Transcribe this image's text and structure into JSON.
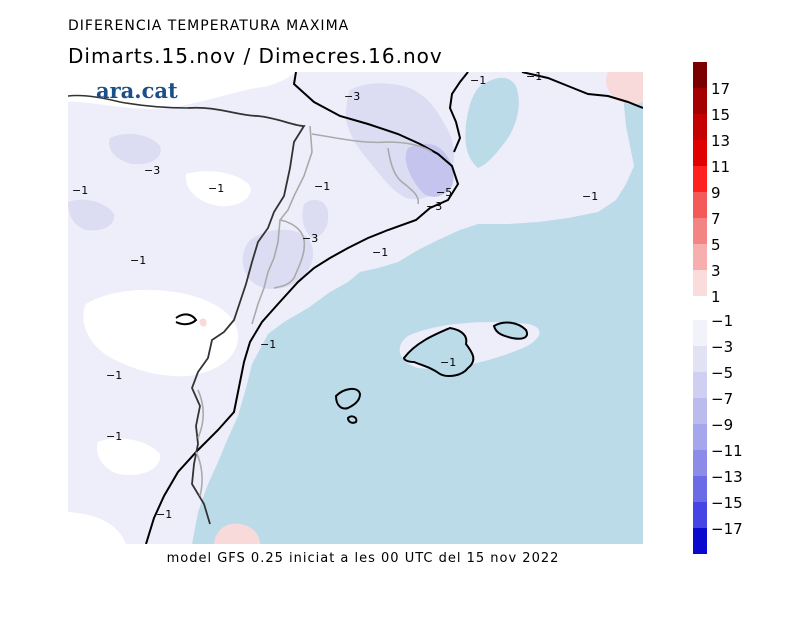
{
  "header": {
    "title": "DIFERENCIA TEMPERATURA MAXIMA",
    "period": "Dimarts.15.nov / Dimecres.16.nov"
  },
  "logo": {
    "text": "ara.cat"
  },
  "footer": {
    "text": "model GFS 0.25 iniciat a les 00 UTC del 15 nov 2022"
  },
  "colors": {
    "sea": "#bcdbe9",
    "land_white": "#ffffff",
    "band_minus1": "#eeeefb",
    "band_minus3": "#dcdcf3",
    "band_minus5": "#c4c4ee",
    "band_plus1": "#f9dada"
  },
  "map": {
    "contour_labels": [
      {
        "text": "−1"
      },
      {
        "text": "−3"
      },
      {
        "text": "−1"
      },
      {
        "text": "−1"
      },
      {
        "text": "−1"
      },
      {
        "text": "−3"
      },
      {
        "text": "−1"
      },
      {
        "text": "−5"
      },
      {
        "text": "−3"
      },
      {
        "text": "−3"
      },
      {
        "text": "−1"
      },
      {
        "text": "−1"
      },
      {
        "text": "−1"
      },
      {
        "text": "−1"
      },
      {
        "text": "−1"
      },
      {
        "text": "−1"
      },
      {
        "text": "−1"
      },
      {
        "text": "−1"
      },
      {
        "text": "−1"
      }
    ]
  },
  "legend": {
    "positive": [
      {
        "label": "17",
        "color": "#7a0000"
      },
      {
        "label": "15",
        "color": "#a40000"
      },
      {
        "label": "13",
        "color": "#c40000"
      },
      {
        "label": "11",
        "color": "#e00000"
      },
      {
        "label": "9",
        "color": "#ff2020"
      },
      {
        "label": "7",
        "color": "#f55a5a"
      },
      {
        "label": "5",
        "color": "#f48383"
      },
      {
        "label": "3",
        "color": "#f6aeae"
      },
      {
        "label": "1",
        "color": "#fadcdc"
      }
    ],
    "negative": [
      {
        "label": "−1",
        "color": "#f2f2fb"
      },
      {
        "label": "−3",
        "color": "#e2e2f5"
      },
      {
        "label": "−5",
        "color": "#cfcff1"
      },
      {
        "label": "−7",
        "color": "#bbbbee"
      },
      {
        "label": "−9",
        "color": "#a6a6ec"
      },
      {
        "label": "−11",
        "color": "#8c8ce8"
      },
      {
        "label": "−13",
        "color": "#6b6be6"
      },
      {
        "label": "−15",
        "color": "#4545e6"
      },
      {
        "label": "−17",
        "color": "#0a0acf"
      }
    ]
  }
}
